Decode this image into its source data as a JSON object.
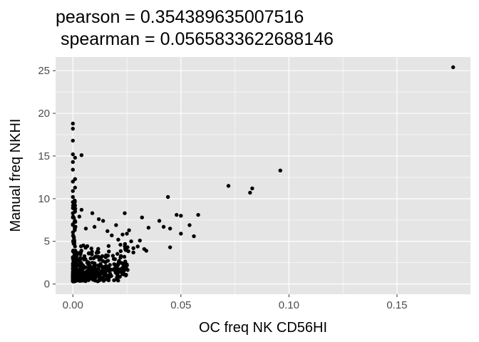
{
  "chart_data": {
    "type": "scatter",
    "title_line1": "pearson = 0.354389635007516",
    "title_line2": " spearman = 0.0565833622688146",
    "xlabel": "OC freq NK CD56HI",
    "ylabel": "Manual freq NKHI",
    "xlim": [
      -0.008,
      0.184
    ],
    "ylim": [
      -1.2,
      26.6
    ],
    "x_ticks": [
      0.0,
      0.05,
      0.1,
      0.15
    ],
    "x_tick_labels": [
      "0.00",
      "0.05",
      "0.10",
      "0.15"
    ],
    "y_ticks": [
      0,
      5,
      10,
      15,
      20,
      25
    ],
    "y_tick_labels": [
      "0",
      "5",
      "10",
      "15",
      "20",
      "25"
    ],
    "grid": true,
    "background_color": "#e5e5e5",
    "grid_color": "#ffffff",
    "point_color": "#000000",
    "cluster_note": "dense cluster of several hundred points near x 0.000-0.025, y 0.3-6",
    "points": [
      {
        "x": 0.0,
        "y": 18.8
      },
      {
        "x": 0.0,
        "y": 18.2
      },
      {
        "x": 0.0,
        "y": 16.8
      },
      {
        "x": 0.0,
        "y": 15.2
      },
      {
        "x": 0.0,
        "y": 14.3
      },
      {
        "x": 0.001,
        "y": 14.8
      },
      {
        "x": 0.0,
        "y": 13.4
      },
      {
        "x": 0.001,
        "y": 12.3
      },
      {
        "x": 0.0,
        "y": 12.0
      },
      {
        "x": 0.001,
        "y": 11.3
      },
      {
        "x": 0.0,
        "y": 10.9
      },
      {
        "x": 0.0,
        "y": 10.2
      },
      {
        "x": 0.0,
        "y": 9.6
      },
      {
        "x": 0.001,
        "y": 9.2
      },
      {
        "x": 0.0,
        "y": 8.9
      },
      {
        "x": 0.0,
        "y": 8.3
      },
      {
        "x": 0.0,
        "y": 7.8
      },
      {
        "x": 0.001,
        "y": 7.4
      },
      {
        "x": 0.0,
        "y": 7.0
      },
      {
        "x": 0.001,
        "y": 6.6
      },
      {
        "x": 0.004,
        "y": 15.1
      },
      {
        "x": 0.004,
        "y": 8.7
      },
      {
        "x": 0.003,
        "y": 7.9
      },
      {
        "x": 0.006,
        "y": 6.5
      },
      {
        "x": 0.009,
        "y": 8.3
      },
      {
        "x": 0.01,
        "y": 6.7
      },
      {
        "x": 0.012,
        "y": 7.6
      },
      {
        "x": 0.014,
        "y": 7.4
      },
      {
        "x": 0.016,
        "y": 6.2
      },
      {
        "x": 0.018,
        "y": 5.7
      },
      {
        "x": 0.02,
        "y": 6.9
      },
      {
        "x": 0.021,
        "y": 5.2
      },
      {
        "x": 0.022,
        "y": 4.6
      },
      {
        "x": 0.023,
        "y": 5.8
      },
      {
        "x": 0.024,
        "y": 8.3
      },
      {
        "x": 0.025,
        "y": 5.9
      },
      {
        "x": 0.026,
        "y": 6.3
      },
      {
        "x": 0.027,
        "y": 5.0
      },
      {
        "x": 0.028,
        "y": 4.2
      },
      {
        "x": 0.028,
        "y": 3.7
      },
      {
        "x": 0.03,
        "y": 4.4
      },
      {
        "x": 0.031,
        "y": 5.1
      },
      {
        "x": 0.032,
        "y": 7.8
      },
      {
        "x": 0.033,
        "y": 4.1
      },
      {
        "x": 0.034,
        "y": 3.9
      },
      {
        "x": 0.035,
        "y": 6.6
      },
      {
        "x": 0.04,
        "y": 7.4
      },
      {
        "x": 0.042,
        "y": 6.7
      },
      {
        "x": 0.044,
        "y": 10.2
      },
      {
        "x": 0.045,
        "y": 6.5
      },
      {
        "x": 0.045,
        "y": 4.3
      },
      {
        "x": 0.048,
        "y": 8.1
      },
      {
        "x": 0.05,
        "y": 5.9
      },
      {
        "x": 0.05,
        "y": 8.0
      },
      {
        "x": 0.054,
        "y": 6.9
      },
      {
        "x": 0.056,
        "y": 5.6
      },
      {
        "x": 0.058,
        "y": 8.1
      },
      {
        "x": 0.072,
        "y": 11.5
      },
      {
        "x": 0.082,
        "y": 10.7
      },
      {
        "x": 0.083,
        "y": 11.2
      },
      {
        "x": 0.096,
        "y": 13.3
      },
      {
        "x": 0.176,
        "y": 25.4
      }
    ]
  }
}
